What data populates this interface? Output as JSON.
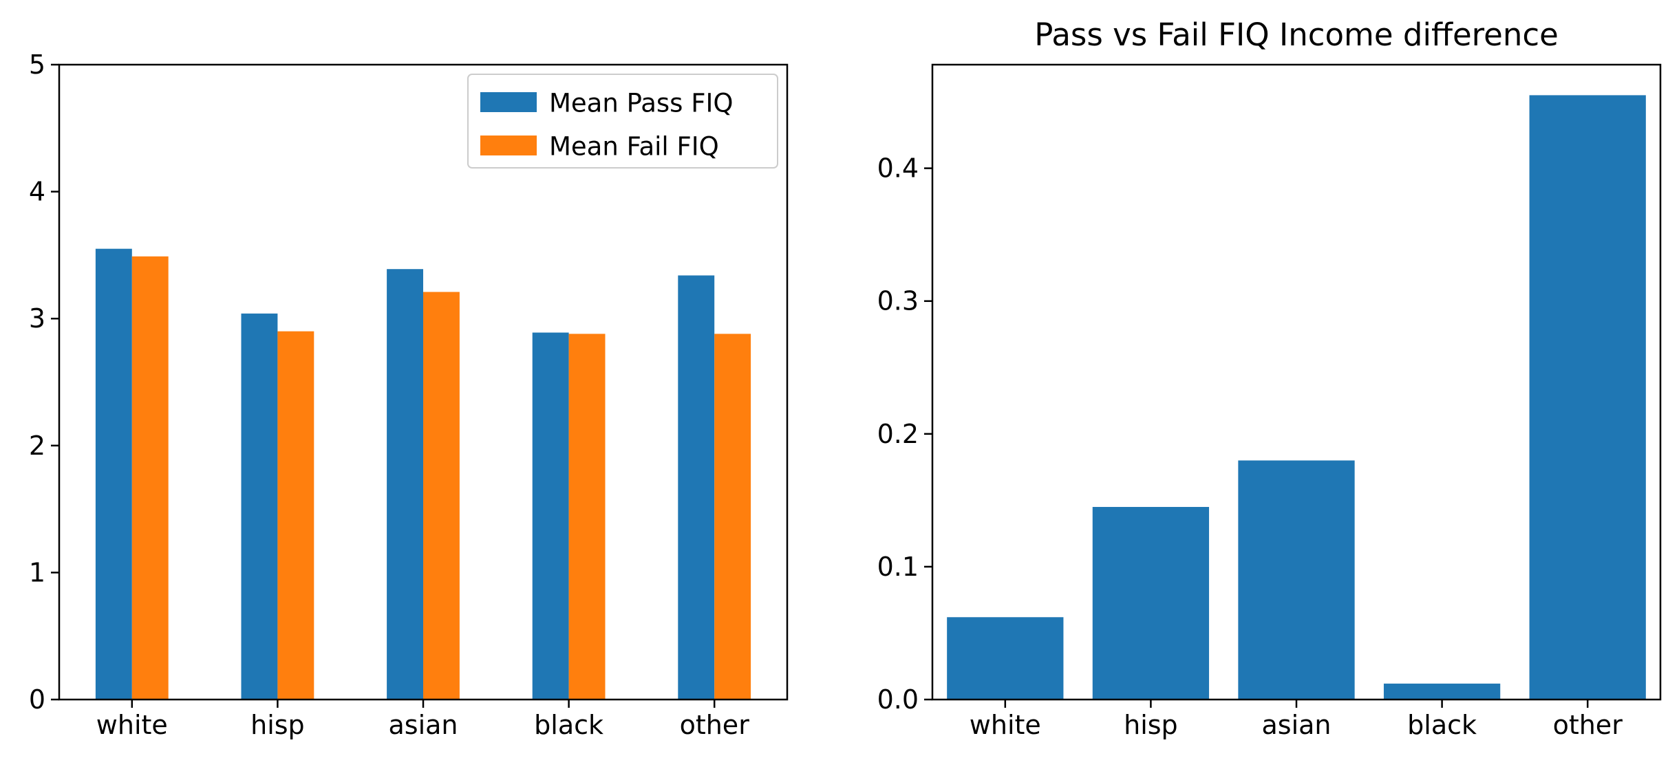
{
  "chart_data": [
    {
      "type": "bar",
      "title": "",
      "xlabel": "",
      "ylabel": "",
      "categories": [
        "white",
        "hisp",
        "asian",
        "black",
        "other"
      ],
      "series": [
        {
          "name": "Mean Pass FIQ",
          "color": "#1f77b4",
          "values": [
            3.55,
            3.04,
            3.39,
            2.89,
            3.34
          ]
        },
        {
          "name": "Mean Fail FIQ",
          "color": "#ff7f0e",
          "values": [
            3.49,
            2.9,
            3.21,
            2.88,
            2.88
          ]
        }
      ],
      "ylim": [
        0,
        5
      ],
      "yticks": [
        0,
        1,
        2,
        3,
        4,
        5
      ],
      "grid": false,
      "legend": "top-right"
    },
    {
      "type": "bar",
      "title": "Pass vs Fail FIQ Income difference",
      "xlabel": "",
      "ylabel": "",
      "categories": [
        "white",
        "hisp",
        "asian",
        "black",
        "other"
      ],
      "series": [
        {
          "color": "#1f77b4",
          "values": [
            0.062,
            0.145,
            0.18,
            0.012,
            0.455
          ]
        }
      ],
      "ylim": [
        0,
        0.478
      ],
      "yticks": [
        0.0,
        0.1,
        0.2,
        0.3,
        0.4
      ],
      "grid": false,
      "legend": "none"
    }
  ]
}
